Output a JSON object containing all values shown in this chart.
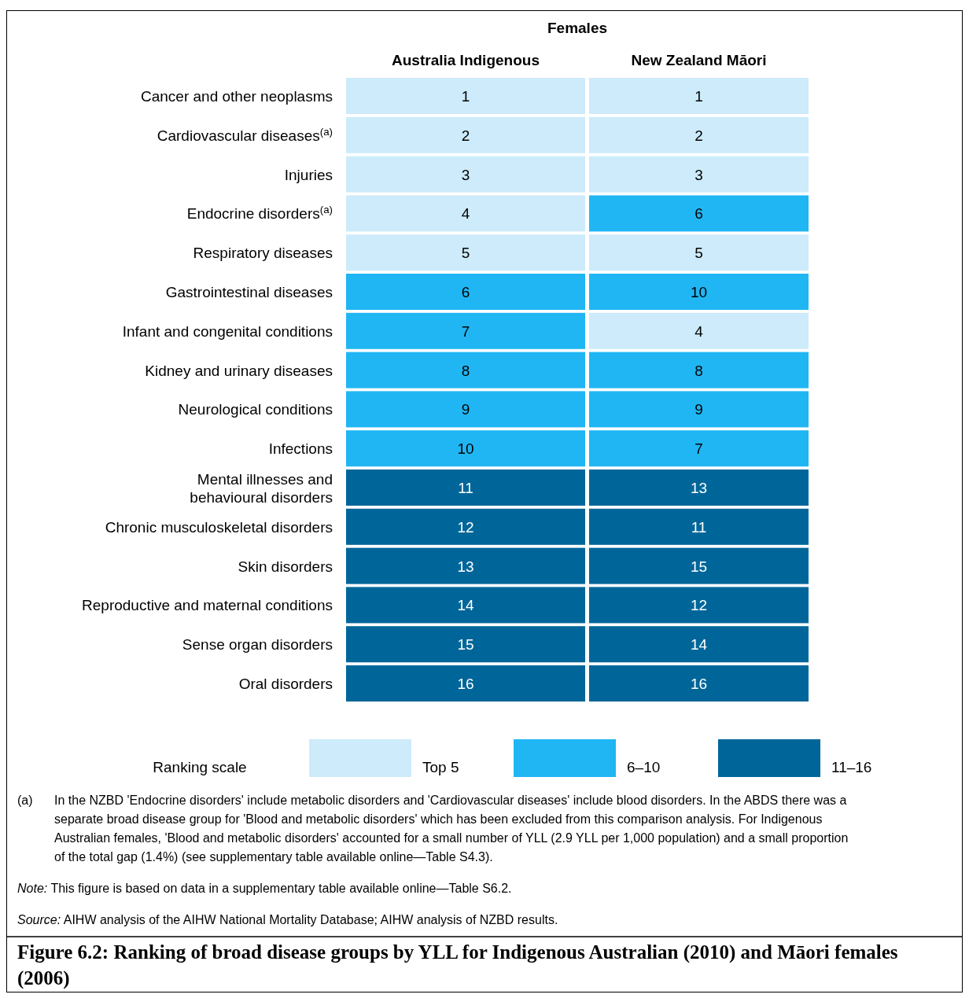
{
  "chart_data": {
    "type": "heatmap",
    "title": "Figure 6.2: Ranking of broad disease groups by YLL for Indigenous Australian (2010) and Māori females (2006)",
    "subtitle": "Females",
    "categories": [
      "Australia Indigenous",
      "New Zealand Māori"
    ],
    "y_categories": [
      "Cancer and other neoplasms",
      "Cardiovascular diseases$^{(a)}$",
      "Injuries",
      "Endocrine disorders$^{(a)}$",
      "Respiratory diseases",
      "Gastrointestinal diseases",
      "Infant and congenital conditions",
      "Kidney and urinary diseases",
      "Neurological conditions",
      "Infections",
      "Mental illnesses and behavioural disorders",
      "Chronic musculoskeletal disorders",
      "Skin disorders",
      "Reproductive and maternal conditions",
      "Sense organ disorders",
      "Oral disorders"
    ],
    "cells": [
      [
        1,
        1
      ],
      [
        2,
        2
      ],
      [
        3,
        3
      ],
      [
        4,
        6
      ],
      [
        5,
        5
      ],
      [
        6,
        10
      ],
      [
        7,
        4
      ],
      [
        8,
        8
      ],
      [
        9,
        9
      ],
      [
        10,
        7
      ],
      [
        11,
        13
      ],
      [
        12,
        11
      ],
      [
        13,
        15
      ],
      [
        14,
        12
      ],
      [
        15,
        14
      ],
      [
        16,
        16
      ]
    ],
    "data_labels": true,
    "legend_title": "Ranking scale",
    "colors": [
      "#cdebfa",
      "#20b6f4",
      "#00669a"
    ],
    "annotations": [
      "Top 5",
      "6–10",
      "11–16",
      "(a)\tIn the NZBD 'Endocrine disorders' include metabolic disorders and 'Cardiovascular diseases' include blood disorders. In the ABDS there was a separate broad disease group for 'Blood and metabolic disorders' which has been excluded from this comparison analysis. For Indigenous Australian females, 'Blood and metabolic disorders' accounted for a small number of YLL (2.9 YLL per 1,000 population) and a small proportion of the total gap (1.4%) (see supplementary table available online—Table S4.3).",
      "Note: This figure is based on data in a supplementary table available online—Table S6.2.",
      "Source: AIHW analysis of the AIHW National Mortality Database; AIHW analysis of NZBD results."
    ]
  }
}
